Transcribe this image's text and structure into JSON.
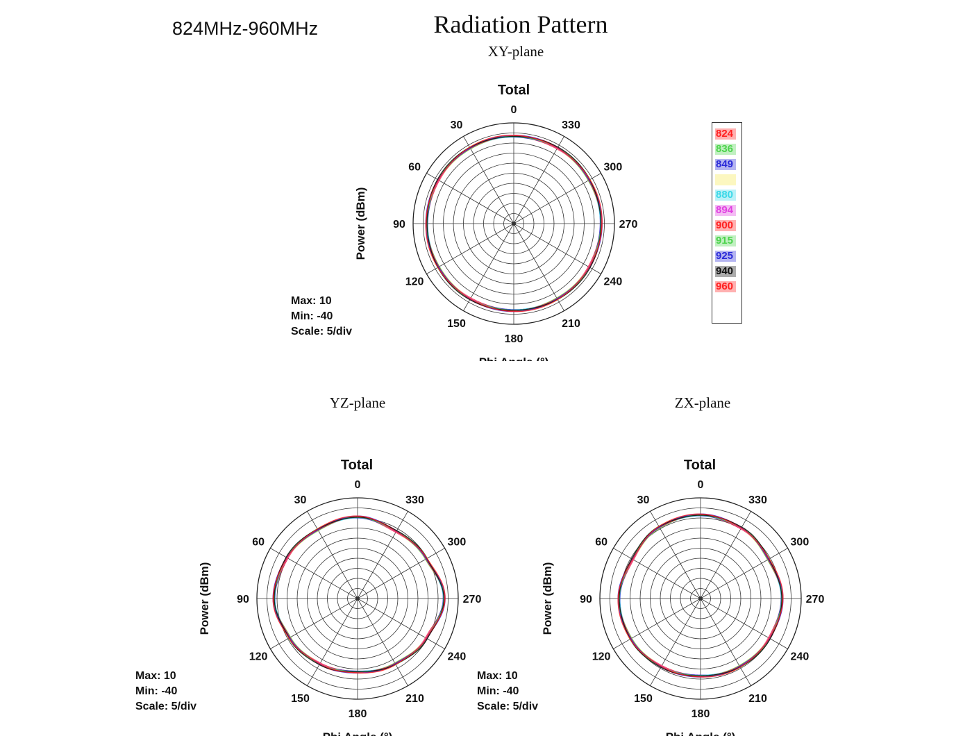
{
  "header": {
    "freq_range": "824MHz-960MHz",
    "title": "Radiation Pattern"
  },
  "chart_data": [
    {
      "type": "polar",
      "plane": "XY-plane",
      "title": "Total",
      "radial_label": "Power (dBm)",
      "angle_label": "Phi Angle (°)",
      "rlim": [
        -40,
        10
      ],
      "scale_step": 5,
      "angle_ticks": [
        0,
        30,
        60,
        90,
        120,
        150,
        180,
        210,
        240,
        270,
        300,
        330
      ],
      "stats": {
        "max": "Max: 10",
        "min": "Min: -40",
        "scale": "Scale: 5/div"
      },
      "pattern_db": [
        3.4,
        3.4,
        3.3,
        3.2,
        3.2,
        3.2,
        3.2,
        3.2,
        3.3,
        3.4,
        3.3,
        3.4
      ],
      "series": [
        {
          "name": "824"
        },
        {
          "name": "836"
        },
        {
          "name": "849"
        },
        {
          "name": ""
        },
        {
          "name": "880"
        },
        {
          "name": "894"
        },
        {
          "name": "900"
        },
        {
          "name": "915"
        },
        {
          "name": "925"
        },
        {
          "name": "940"
        },
        {
          "name": "960"
        }
      ]
    },
    {
      "type": "polar",
      "plane": "YZ-plane",
      "title": "Total",
      "radial_label": "Power (dBm)",
      "angle_label": "Phi Angle (°)",
      "rlim": [
        -40,
        10
      ],
      "scale_step": 5,
      "angle_ticks": [
        0,
        30,
        60,
        90,
        120,
        150,
        180,
        210,
        240,
        270,
        300,
        330
      ],
      "stats": {
        "max": "Max: 10",
        "min": "Min: -40",
        "scale": "Scale: 5/div"
      },
      "pattern_db": [
        0.5,
        -0.5,
        0.5,
        1.5,
        -1.0,
        -2.5,
        -3.5,
        -2.5,
        -0.5,
        3.0,
        -0.5,
        -1.5
      ]
    },
    {
      "type": "polar",
      "plane": "ZX-plane",
      "title": "Total",
      "radial_label": "Power (dBm)",
      "angle_label": "Phi Angle (°)",
      "rlim": [
        -40,
        10
      ],
      "scale_step": 5,
      "angle_ticks": [
        0,
        30,
        60,
        90,
        120,
        150,
        180,
        210,
        240,
        270,
        300,
        330
      ],
      "stats": {
        "max": "Max: 10",
        "min": "Min: -40",
        "scale": "Scale: 5/div"
      },
      "pattern_db": [
        1.5,
        1.0,
        -1.0,
        0.5,
        0.0,
        -1.0,
        -1.5,
        -1.0,
        -0.5,
        0.5,
        -1.0,
        0.5
      ]
    }
  ],
  "legend": {
    "items": [
      {
        "label": "824",
        "color": "#ff2020"
      },
      {
        "label": "836",
        "color": "#4cd34c"
      },
      {
        "label": "849",
        "color": "#2a2ad8"
      },
      {
        "label": "",
        "color": "#f5e84a"
      },
      {
        "label": "880",
        "color": "#3ad8e8"
      },
      {
        "label": "894",
        "color": "#e040e0"
      },
      {
        "label": "900",
        "color": "#ff2020"
      },
      {
        "label": "915",
        "color": "#4cd34c"
      },
      {
        "label": "925",
        "color": "#2a2ad8"
      },
      {
        "label": "940",
        "color": "#111111"
      },
      {
        "label": "960",
        "color": "#ff2020"
      }
    ]
  }
}
